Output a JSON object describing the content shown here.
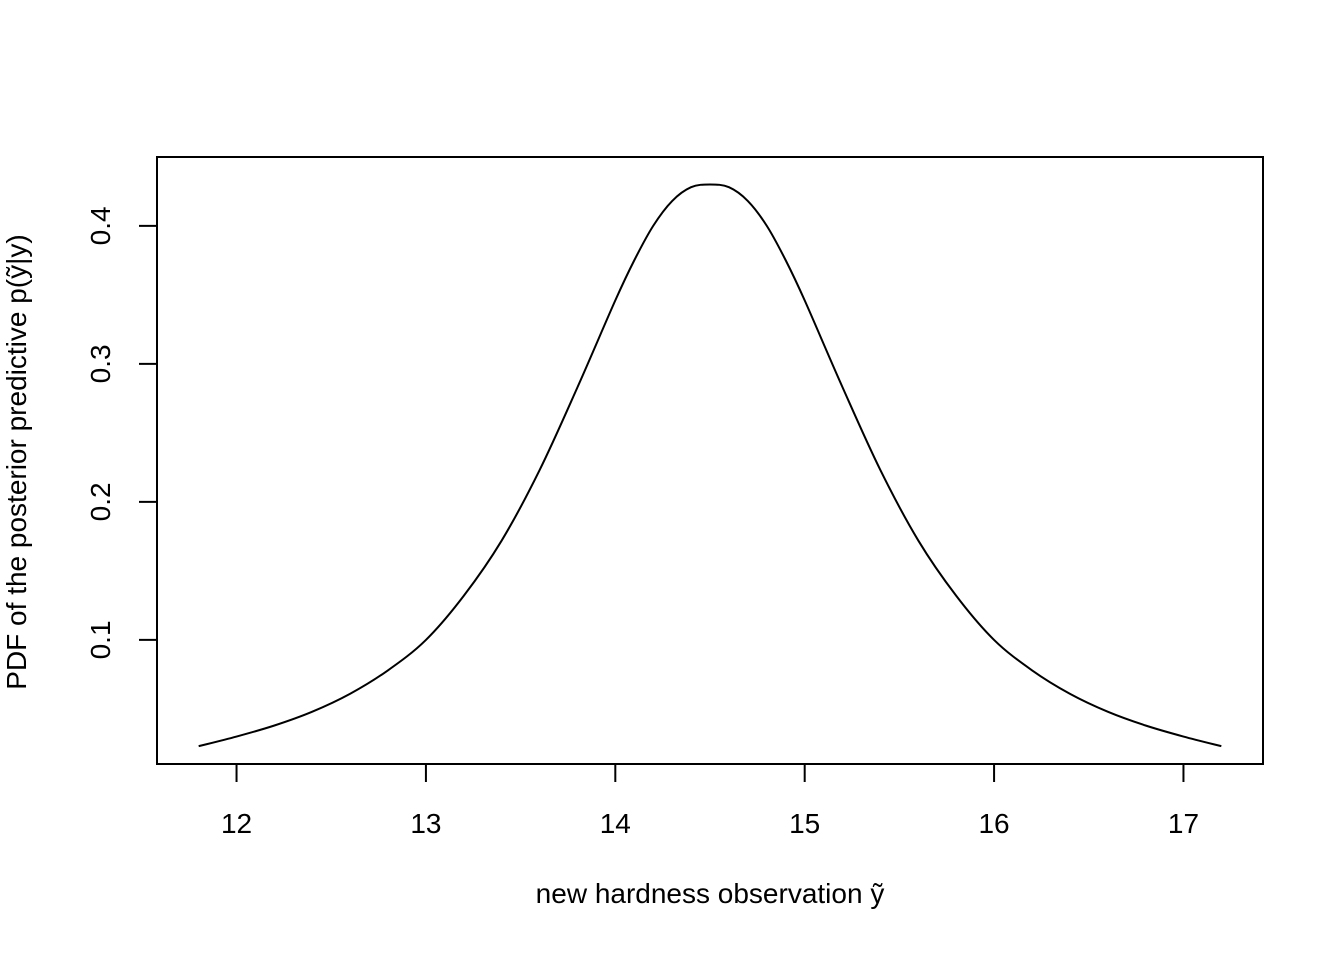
{
  "chart_data": {
    "type": "line",
    "title": "",
    "xlabel": "new hardness observation ỹ",
    "ylabel": "PDF of the posterior predictive p(ỹ|y)",
    "xlim": [
      11.58,
      17.42
    ],
    "ylim": [
      0.0101,
      0.4499
    ],
    "x_ticks": [
      12,
      13,
      14,
      15,
      16,
      17
    ],
    "y_ticks": [
      0.1,
      0.2,
      0.3,
      0.4
    ],
    "x_tick_labels": [
      "12",
      "13",
      "14",
      "15",
      "16",
      "17"
    ],
    "y_tick_labels": [
      "0.1",
      "0.2",
      "0.3",
      "0.4"
    ],
    "grid": false,
    "legend": "none",
    "line_color": "#000000",
    "series": [
      {
        "x": [
          11.8,
          12.0,
          12.2,
          12.4,
          12.6,
          12.8,
          13.0,
          13.2,
          13.4,
          13.6,
          13.8,
          14.0,
          14.1,
          14.2,
          14.3,
          14.4,
          14.5,
          14.6,
          14.7,
          14.8,
          14.9,
          15.0,
          15.2,
          15.4,
          15.6,
          15.8,
          16.0,
          16.2,
          16.4,
          16.6,
          16.8,
          17.0,
          17.2
        ],
        "y": [
          0.023,
          0.03,
          0.038,
          0.048,
          0.061,
          0.078,
          0.1,
          0.132,
          0.172,
          0.223,
          0.283,
          0.346,
          0.375,
          0.4,
          0.418,
          0.428,
          0.43,
          0.428,
          0.418,
          0.4,
          0.375,
          0.346,
          0.283,
          0.223,
          0.172,
          0.132,
          0.1,
          0.078,
          0.061,
          0.048,
          0.038,
          0.03,
          0.023
        ]
      }
    ]
  }
}
